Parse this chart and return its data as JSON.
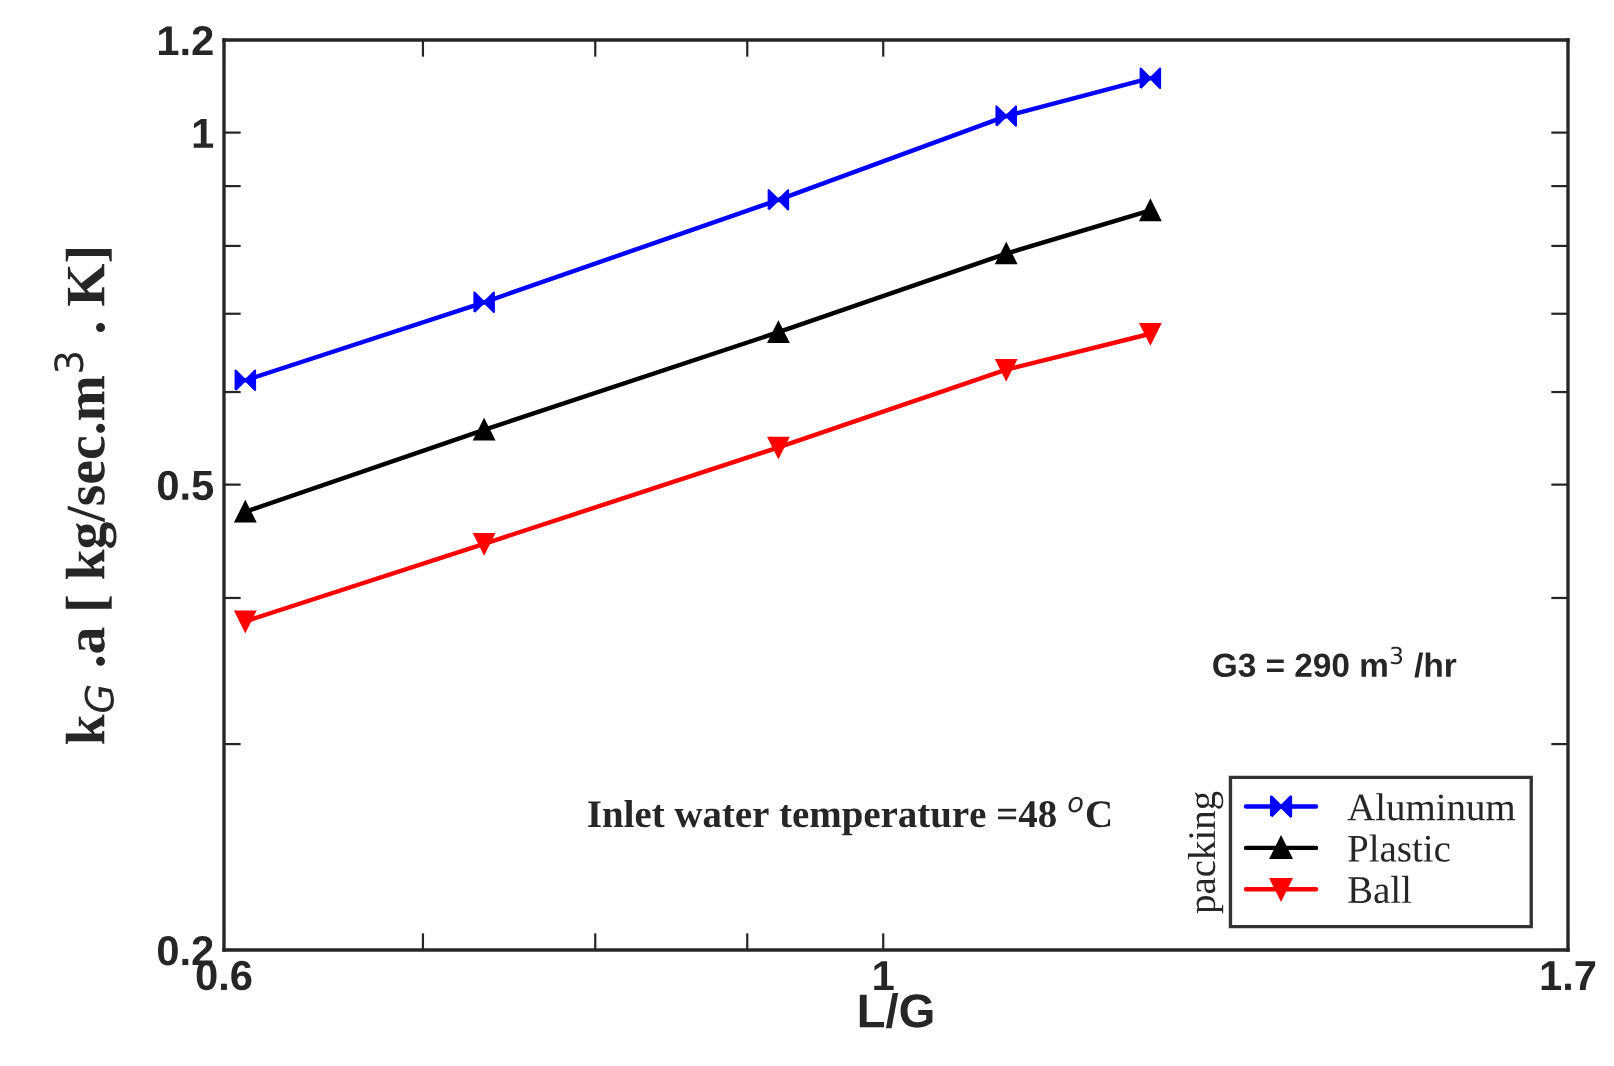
{
  "chart_data": {
    "type": "line",
    "xlabel": "L/G",
    "ylabel": "k$_{G}$ .a [ kg/sec.m$^{3}$ . K]",
    "log": "xy",
    "x": [
      0.61,
      0.734,
      0.922,
      1.1,
      1.23
    ],
    "series": [
      {
        "name": "Aluminum",
        "color": "#0000ff",
        "marker": "cross",
        "values": [
          0.614,
          0.716,
          0.876,
          1.033,
          1.113
        ]
      },
      {
        "name": "Plastic",
        "color": "#000000",
        "marker": "triangle",
        "values": [
          0.474,
          0.557,
          0.675,
          0.788,
          0.858
        ]
      },
      {
        "name": "Ball",
        "color": "#ff0000",
        "marker": "triangle_down",
        "values": [
          0.382,
          0.445,
          0.538,
          0.627,
          0.673
        ]
      }
    ],
    "xlim": [
      0.6,
      1.7
    ],
    "xticks": [
      0.6,
      {
        "value": 0.7,
        "label": null
      },
      {
        "value": 0.8,
        "label": null
      },
      {
        "value": 0.9,
        "label": null
      },
      1,
      1.7
    ],
    "ylim": [
      0.2,
      1.2
    ],
    "yticks": [
      0.2,
      {
        "value": 0.3,
        "label": null
      },
      {
        "value": 0.4,
        "label": null
      },
      0.5,
      {
        "value": 0.6,
        "label": null
      },
      {
        "value": 0.7,
        "label": null
      },
      {
        "value": 0.8,
        "label": null
      },
      {
        "value": 0.9,
        "label": null
      },
      1,
      1.2
    ],
    "legend": "bottom right",
    "legend_title": "packing",
    "grid": false,
    "line_style": "solid",
    "annotations": [
      "G3 = 290 m$^{3}$ /hr",
      "Inlet water temperature =48 $^{o}$C"
    ]
  }
}
